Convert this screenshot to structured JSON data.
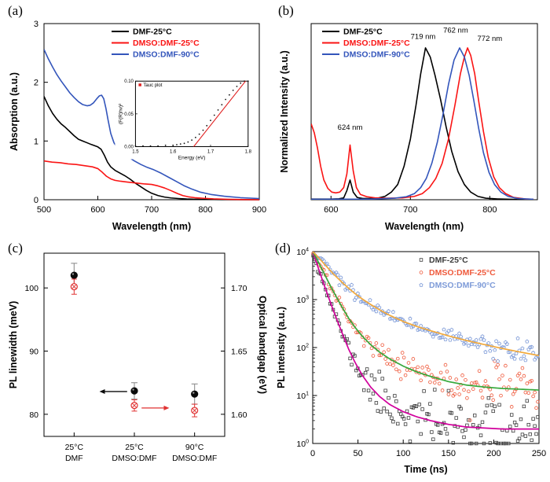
{
  "panel_labels": {
    "a": "(a)",
    "b": "(b)",
    "c": "(c)",
    "d": "(d)"
  },
  "colors": {
    "black": "#000000",
    "red": "#fa1414",
    "blue": "#3355bb"
  },
  "chart_data": [
    {
      "id": "a",
      "type": "line",
      "xlabel": "Wavelength (nm)",
      "ylabel": "Absorption (a.u.)",
      "xlim": [
        500,
        900
      ],
      "ylim": [
        0,
        3
      ],
      "xticks": [
        500,
        600,
        700,
        800,
        900
      ],
      "xtick_labels": [
        "500",
        "600",
        "700",
        "800",
        "900"
      ],
      "yticks": [
        0,
        1,
        2,
        3
      ],
      "ytick_labels": [
        "0",
        "1",
        "2",
        "3"
      ],
      "legend": [
        {
          "label": "DMF-25°C",
          "color": "#000000"
        },
        {
          "label": "DMSO:DMF-25°C",
          "color": "#fa1414"
        },
        {
          "label": "DMSO:DMF-90°C",
          "color": "#3355bb"
        }
      ],
      "series": [
        {
          "name": "DMF-25°C",
          "color": "#000000",
          "x": [
            500,
            508,
            516,
            524,
            532,
            540,
            548,
            556,
            564,
            572,
            580,
            588,
            594,
            600,
            606,
            612,
            618,
            624,
            632,
            640,
            650,
            660,
            670,
            680,
            690,
            700,
            712,
            724,
            736,
            750,
            765,
            780,
            800,
            830,
            860,
            900
          ],
          "y": [
            1.76,
            1.6,
            1.47,
            1.37,
            1.29,
            1.23,
            1.16,
            1.09,
            1.03,
            1.0,
            0.97,
            0.94,
            0.92,
            0.9,
            0.86,
            0.76,
            0.64,
            0.56,
            0.5,
            0.46,
            0.41,
            0.35,
            0.28,
            0.22,
            0.16,
            0.11,
            0.07,
            0.045,
            0.03,
            0.02,
            0.012,
            0.008,
            0.005,
            0.002,
            0.001,
            0.0
          ]
        },
        {
          "name": "DMSO:DMF-25°C",
          "color": "#fa1414",
          "x": [
            500,
            515,
            530,
            545,
            560,
            575,
            590,
            600,
            608,
            616,
            624,
            632,
            642,
            655,
            670,
            685,
            700,
            712,
            724,
            736,
            748,
            758,
            768,
            780,
            795,
            815,
            840,
            870,
            900
          ],
          "y": [
            0.66,
            0.64,
            0.63,
            0.61,
            0.6,
            0.58,
            0.56,
            0.53,
            0.47,
            0.4,
            0.355,
            0.33,
            0.315,
            0.3,
            0.285,
            0.27,
            0.26,
            0.235,
            0.2,
            0.155,
            0.105,
            0.07,
            0.05,
            0.035,
            0.025,
            0.015,
            0.008,
            0.003,
            0.0
          ]
        },
        {
          "name": "DMSO:DMF-90°C",
          "color": "#3355bb",
          "x": [
            500,
            508,
            516,
            524,
            532,
            540,
            548,
            556,
            564,
            572,
            580,
            586,
            592,
            598,
            603,
            607,
            611,
            615,
            619,
            624,
            630,
            638,
            648,
            658,
            668,
            680,
            692,
            704,
            718,
            732,
            746,
            760,
            775,
            790,
            810,
            835,
            865,
            900
          ],
          "y": [
            2.56,
            2.4,
            2.26,
            2.13,
            2.02,
            1.92,
            1.82,
            1.74,
            1.67,
            1.62,
            1.6,
            1.61,
            1.65,
            1.72,
            1.77,
            1.78,
            1.72,
            1.56,
            1.36,
            1.13,
            0.97,
            0.86,
            0.78,
            0.72,
            0.66,
            0.6,
            0.55,
            0.51,
            0.45,
            0.38,
            0.31,
            0.24,
            0.18,
            0.13,
            0.09,
            0.06,
            0.035,
            0.02
          ]
        }
      ],
      "inset": {
        "legend_label": "Tauc plot",
        "xlabel": "Energy (eV)",
        "ylabel": "(F(R)hν)²",
        "xlim": [
          1.5,
          1.8
        ],
        "ylim": [
          0,
          0.1
        ],
        "xticks": [
          1.5,
          1.6,
          1.7,
          1.8
        ],
        "xtick_labels": [
          "1.5",
          "1.6",
          "1.7",
          "1.8"
        ],
        "yticks": [
          0,
          0.05,
          0.1
        ],
        "ytick_labels": [
          "0.00",
          "0.05",
          "0.10"
        ],
        "scatter_x": [
          1.5,
          1.52,
          1.54,
          1.56,
          1.58,
          1.6,
          1.61,
          1.62,
          1.63,
          1.64,
          1.65,
          1.66,
          1.67,
          1.68,
          1.69,
          1.7,
          1.71,
          1.72,
          1.73,
          1.74,
          1.75,
          1.76,
          1.77,
          1.78,
          1.79,
          1.8
        ],
        "scatter_y": [
          0.001,
          0.001,
          0.001,
          0.001,
          0.002,
          0.002,
          0.003,
          0.004,
          0.005,
          0.007,
          0.01,
          0.014,
          0.019,
          0.025,
          0.032,
          0.04,
          0.048,
          0.056,
          0.064,
          0.072,
          0.079,
          0.086,
          0.092,
          0.097,
          0.101,
          0.105
        ],
        "fit_line": {
          "x": [
            1.655,
            1.8
          ],
          "y": [
            0,
            0.105
          ],
          "color": "#e02020"
        }
      }
    },
    {
      "id": "b",
      "type": "line",
      "xlabel": "Wavelength (nm)",
      "ylabel": "Normalized Intensity (a.u.)",
      "xlim": [
        575,
        860
      ],
      "ylim": [
        0,
        1.16
      ],
      "xticks": [
        600,
        700,
        800
      ],
      "xtick_labels": [
        "600",
        "700",
        "800"
      ],
      "legend": [
        {
          "label": "DMF-25°C",
          "color": "#000000"
        },
        {
          "label": "DMSO:DMF-25°C",
          "color": "#fa1414"
        },
        {
          "label": "DMSO:DMF-90°C",
          "color": "#3355bb"
        }
      ],
      "annotations": [
        {
          "text": "624 nm",
          "x": 624,
          "y": 0.46
        },
        {
          "text": "719 nm",
          "x": 716,
          "y": 1.06
        },
        {
          "text": "762 nm",
          "x": 757,
          "y": 1.1
        },
        {
          "text": "772 nm",
          "x": 800,
          "y": 1.045
        }
      ],
      "series": [
        {
          "name": "DMF-25°C",
          "color": "#000000",
          "x": [
            575,
            600,
            610,
            616,
            620,
            624,
            628,
            633,
            640,
            650,
            660,
            668,
            676,
            684,
            692,
            700,
            707,
            713,
            719,
            725,
            731,
            738,
            745,
            752,
            760,
            768,
            776,
            785,
            795,
            810,
            830,
            855
          ],
          "y": [
            0.004,
            0.004,
            0.006,
            0.012,
            0.06,
            0.13,
            0.05,
            0.015,
            0.008,
            0.008,
            0.012,
            0.022,
            0.05,
            0.1,
            0.22,
            0.4,
            0.62,
            0.83,
            1.0,
            0.94,
            0.82,
            0.66,
            0.48,
            0.32,
            0.185,
            0.1,
            0.05,
            0.022,
            0.01,
            0.005,
            0.002,
            0.001
          ]
        },
        {
          "name": "DMSO:DMF-25°C",
          "color": "#fa1414",
          "x": [
            575,
            579,
            583,
            587,
            591,
            596,
            601,
            606,
            611,
            616,
            620,
            624,
            628,
            632,
            637,
            645,
            655,
            670,
            690,
            705,
            715,
            724,
            732,
            740,
            748,
            756,
            763,
            768,
            772,
            776,
            781,
            786,
            792,
            798,
            805,
            812,
            820,
            830,
            845,
            855
          ],
          "y": [
            0.5,
            0.44,
            0.34,
            0.22,
            0.13,
            0.075,
            0.05,
            0.045,
            0.05,
            0.08,
            0.17,
            0.36,
            0.19,
            0.08,
            0.035,
            0.02,
            0.013,
            0.01,
            0.012,
            0.022,
            0.04,
            0.08,
            0.14,
            0.24,
            0.4,
            0.62,
            0.83,
            0.94,
            1.0,
            0.95,
            0.83,
            0.65,
            0.45,
            0.28,
            0.15,
            0.08,
            0.04,
            0.015,
            0.005,
            0.003
          ]
        },
        {
          "name": "DMSO:DMF-90°C",
          "color": "#3355bb",
          "x": [
            575,
            650,
            680,
            695,
            705,
            713,
            720,
            727,
            734,
            741,
            748,
            755,
            762,
            768,
            774,
            780,
            786,
            792,
            799,
            806,
            814,
            823,
            835,
            855
          ],
          "y": [
            0.003,
            0.004,
            0.01,
            0.02,
            0.04,
            0.08,
            0.14,
            0.24,
            0.38,
            0.56,
            0.76,
            0.92,
            1.0,
            0.94,
            0.82,
            0.65,
            0.47,
            0.31,
            0.18,
            0.1,
            0.05,
            0.022,
            0.008,
            0.003
          ]
        }
      ]
    },
    {
      "id": "c",
      "type": "scatter",
      "categories": [
        [
          "25°C",
          "DMF"
        ],
        [
          "25°C",
          "DMSO:DMF"
        ],
        [
          "90°C",
          "DMSO:DMF"
        ]
      ],
      "ylabel_left": "PL linewidth (meV)",
      "ylabel_right": "Optical bandgap (eV)",
      "ylim_left": [
        76.5,
        105.5
      ],
      "yticks_left": [
        80,
        90,
        100
      ],
      "ytick_labels_left": [
        "80",
        "90",
        "100"
      ],
      "ylim_right": [
        1.5825,
        1.7275
      ],
      "yticks_right": [
        1.6,
        1.65,
        1.7
      ],
      "ytick_labels_right": [
        "1.60",
        "1.65",
        "1.70"
      ],
      "linewidth": {
        "label": "PL linewidth (meV)",
        "color": "#0a0a0a",
        "values": [
          102.0,
          83.7,
          83.2
        ],
        "errors": [
          1.9,
          1.3,
          1.6
        ]
      },
      "bandgap": {
        "label": "Optical bandgap (eV)",
        "color": "#e03232",
        "values": [
          1.701,
          1.607,
          1.603
        ],
        "errors": [
          0.006,
          0.0045,
          0.005
        ]
      },
      "arrows": [
        {
          "x1": 1.88,
          "x2": 1.42,
          "y": 83.6,
          "color": "#0a0a0a"
        },
        {
          "x1": 2.12,
          "x2": 2.58,
          "y": 81.0,
          "color": "#e03232"
        }
      ]
    },
    {
      "id": "d",
      "type": "decay",
      "xlabel": "Time (ns)",
      "ylabel": "PL intensity (a.u.)",
      "xlim": [
        0,
        250
      ],
      "xticks": [
        0,
        50,
        100,
        150,
        200,
        250
      ],
      "xtick_labels": [
        "0",
        "50",
        "100",
        "150",
        "200",
        "250"
      ],
      "ylog_range": [
        1,
        10000
      ],
      "series": [
        {
          "label": "DMF-25°C",
          "color": "#3c3c3c",
          "marker": "square",
          "fit_color": "#d1009c",
          "t": [
            0,
            2,
            4,
            7,
            10,
            14,
            18,
            23,
            28,
            34,
            40,
            47,
            55,
            64,
            74,
            85,
            100,
            115,
            130,
            150,
            170,
            190,
            210,
            230,
            250
          ],
          "y": [
            10000,
            7800,
            6000,
            4100,
            2800,
            1700,
            1050,
            580,
            330,
            170,
            90,
            48,
            26,
            15,
            9.5,
            6.5,
            4.6,
            3.6,
            3.0,
            2.5,
            2.2,
            2.1,
            2.0,
            2.0,
            2.0
          ]
        },
        {
          "label": "DMSO:DMF-25°C",
          "color": "#ef5a3c",
          "marker": "circle",
          "fit_color": "#37a93c",
          "t": [
            0,
            2,
            4,
            7,
            10,
            14,
            18,
            23,
            28,
            34,
            40,
            47,
            55,
            64,
            74,
            85,
            100,
            115,
            130,
            150,
            170,
            190,
            210,
            230,
            250
          ],
          "y": [
            10000,
            8600,
            7300,
            5700,
            4400,
            3100,
            2200,
            1450,
            980,
            620,
            400,
            260,
            170,
            115,
            80,
            58,
            41,
            31,
            25,
            19.5,
            16.5,
            15,
            14,
            13.5,
            13
          ]
        },
        {
          "label": "DMSO:DMF-90°C",
          "color": "#7e9bd8",
          "marker": "pentagon",
          "fit_color": "#f2a93b",
          "t": [
            0,
            2,
            4,
            7,
            10,
            14,
            18,
            23,
            28,
            34,
            40,
            47,
            55,
            64,
            74,
            85,
            100,
            115,
            130,
            150,
            170,
            190,
            210,
            230,
            250
          ],
          "y": [
            10000,
            9200,
            8400,
            7300,
            6300,
            5200,
            4300,
            3400,
            2750,
            2150,
            1700,
            1320,
            1020,
            790,
            610,
            470,
            350,
            275,
            225,
            175,
            140,
            115,
            95,
            80,
            68
          ]
        }
      ]
    }
  ]
}
